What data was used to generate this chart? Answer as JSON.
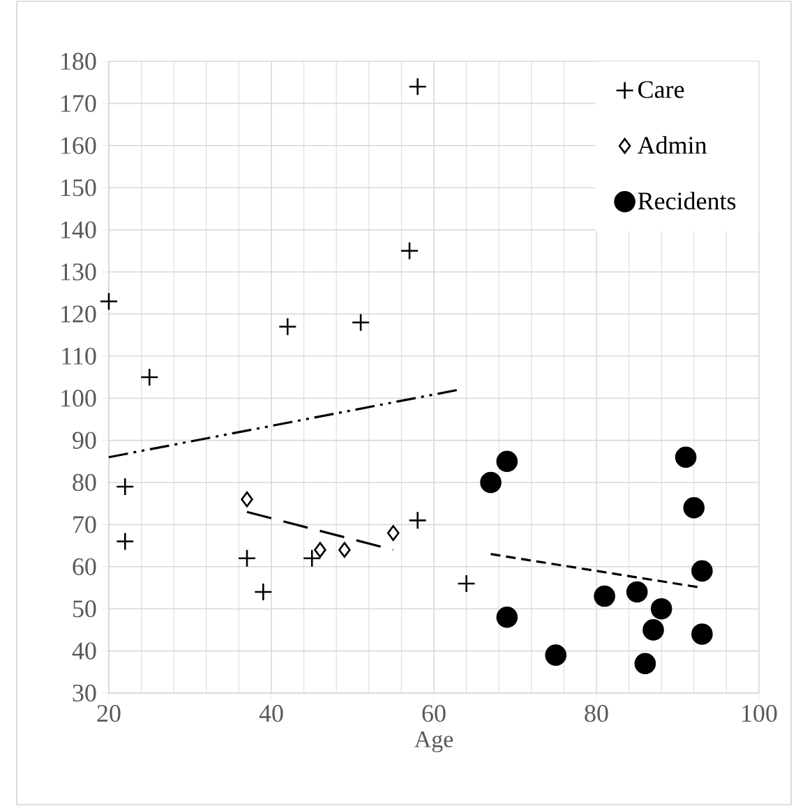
{
  "chart_data": {
    "type": "scatter",
    "xlabel": "Age",
    "xlim": [
      20,
      100
    ],
    "xticks": [
      20,
      40,
      60,
      80,
      100
    ],
    "ylim": [
      30,
      180
    ],
    "yticks": [
      30,
      40,
      50,
      60,
      70,
      80,
      90,
      100,
      110,
      120,
      130,
      140,
      150,
      160,
      170,
      180
    ],
    "grid": true,
    "legend": "top right",
    "series": [
      {
        "name": "Care",
        "color": "#000000",
        "marker": "cross",
        "x": [
          20,
          25,
          42,
          51,
          57,
          58,
          22,
          22,
          37,
          39,
          45,
          58,
          64
        ],
        "values": [
          123,
          105,
          117,
          118,
          135,
          174,
          79,
          66,
          62,
          54,
          62,
          71,
          56
        ]
      },
      {
        "name": "Admin",
        "color": "#000000",
        "marker": "diamond",
        "x": [
          37,
          46,
          49,
          55
        ],
        "values": [
          76,
          64,
          64,
          68
        ]
      },
      {
        "name": "Recidents",
        "color": "#000000",
        "marker": "circle",
        "x": [
          67,
          69,
          69,
          75,
          81,
          85,
          86,
          87,
          88,
          91,
          92,
          93,
          93
        ],
        "values": [
          80,
          85,
          48,
          39,
          53,
          54,
          37,
          45,
          50,
          86,
          74,
          59,
          44
        ]
      },
      {
        "type": "line",
        "color": "#000000",
        "marker": "none",
        "line_style": "dashdotdotted",
        "x": [
          20,
          63
        ],
        "values": [
          86,
          102
        ]
      },
      {
        "type": "line",
        "color": "#000000",
        "marker": "none",
        "line_style": "longdashed",
        "x": [
          37,
          55
        ],
        "values": [
          73,
          64
        ]
      },
      {
        "type": "line",
        "color": "#000000",
        "marker": "none",
        "line_style": "dashed",
        "x": [
          67,
          93
        ],
        "values": [
          63,
          55
        ]
      }
    ]
  }
}
